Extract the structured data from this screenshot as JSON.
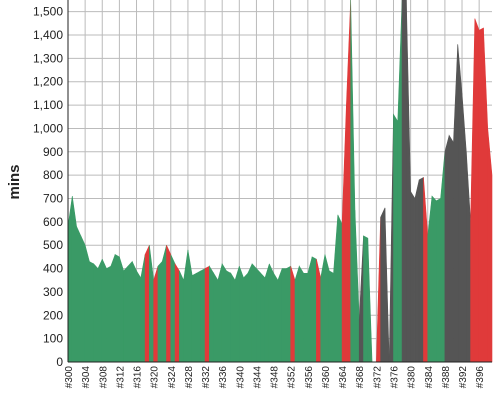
{
  "chart_data": {
    "type": "area",
    "ylabel": "mins",
    "ylim": [
      0,
      1550
    ],
    "yticks": [
      0,
      100,
      200,
      300,
      400,
      500,
      600,
      700,
      800,
      900,
      1000,
      1100,
      1200,
      1300,
      1400,
      1500
    ],
    "ytick_labels": [
      "0",
      "100",
      "200",
      "300",
      "400",
      "500",
      "600",
      "700",
      "800",
      "900",
      "1,000",
      "1,100",
      "1,200",
      "1,300",
      "1,400",
      "1,500"
    ],
    "x": [
      300,
      301,
      302,
      303,
      304,
      305,
      306,
      307,
      308,
      309,
      310,
      311,
      312,
      313,
      314,
      315,
      316,
      317,
      318,
      319,
      320,
      321,
      322,
      323,
      324,
      325,
      326,
      327,
      328,
      329,
      330,
      331,
      332,
      333,
      334,
      335,
      336,
      337,
      338,
      339,
      340,
      341,
      342,
      343,
      344,
      345,
      346,
      347,
      348,
      349,
      350,
      351,
      352,
      353,
      354,
      355,
      356,
      357,
      358,
      359,
      360,
      361,
      362,
      363,
      364,
      365,
      366,
      367,
      368,
      369,
      370,
      371,
      372,
      373,
      374,
      375,
      376,
      377,
      378,
      379,
      380,
      381,
      382,
      383,
      384,
      385,
      386,
      387,
      388,
      389,
      390,
      391,
      392,
      393,
      394,
      395,
      396,
      397,
      398,
      399
    ],
    "values": [
      580,
      710,
      580,
      540,
      500,
      430,
      420,
      400,
      440,
      400,
      410,
      460,
      450,
      390,
      410,
      430,
      390,
      360,
      460,
      500,
      350,
      410,
      430,
      500,
      460,
      420,
      390,
      350,
      480,
      370,
      380,
      390,
      400,
      410,
      380,
      350,
      420,
      390,
      380,
      350,
      410,
      360,
      380,
      420,
      400,
      380,
      360,
      420,
      380,
      350,
      400,
      400,
      410,
      350,
      410,
      380,
      380,
      450,
      440,
      360,
      460,
      390,
      380,
      630,
      590,
      1100,
      1600,
      650,
      180,
      540,
      530,
      0,
      0,
      620,
      660,
      0,
      1060,
      1030,
      1600,
      1600,
      730,
      700,
      780,
      790,
      540,
      710,
      690,
      700,
      900,
      970,
      940,
      1360,
      1150,
      900,
      600,
      1470,
      1420,
      1430,
      1000,
      800
    ],
    "colors": [
      "#3a9a66",
      "#3a9a66",
      "#3a9a66",
      "#3a9a66",
      "#3a9a66",
      "#3a9a66",
      "#3a9a66",
      "#3a9a66",
      "#3a9a66",
      "#3a9a66",
      "#3a9a66",
      "#3a9a66",
      "#3a9a66",
      "#3a9a66",
      "#3a9a66",
      "#3a9a66",
      "#3a9a66",
      "#3a9a66",
      "#e03a3a",
      "#3a9a66",
      "#e03a3a",
      "#3a9a66",
      "#3a9a66",
      "#e03a3a",
      "#3a9a66",
      "#e03a3a",
      "#3a9a66",
      "#3a9a66",
      "#3a9a66",
      "#3a9a66",
      "#3a9a66",
      "#3a9a66",
      "#e03a3a",
      "#3a9a66",
      "#3a9a66",
      "#3a9a66",
      "#3a9a66",
      "#3a9a66",
      "#3a9a66",
      "#3a9a66",
      "#3a9a66",
      "#3a9a66",
      "#3a9a66",
      "#3a9a66",
      "#3a9a66",
      "#3a9a66",
      "#3a9a66",
      "#3a9a66",
      "#3a9a66",
      "#3a9a66",
      "#3a9a66",
      "#3a9a66",
      "#e03a3a",
      "#3a9a66",
      "#3a9a66",
      "#3a9a66",
      "#3a9a66",
      "#3a9a66",
      "#e03a3a",
      "#3a9a66",
      "#3a9a66",
      "#3a9a66",
      "#3a9a66",
      "#3a9a66",
      "#e03a3a",
      "#e03a3a",
      "#3a9a66",
      "#3a9a66",
      "#555555",
      "#3a9a66",
      "#3a9a66",
      "#e03a3a",
      "#e03a3a",
      "#555555",
      "#555555",
      "#555555",
      "#3a9a66",
      "#3a9a66",
      "#555555",
      "#555555",
      "#555555",
      "#555555",
      "#555555",
      "#e03a3a",
      "#3a9a66",
      "#3a9a66",
      "#3a9a66",
      "#3a9a66",
      "#555555",
      "#555555",
      "#555555",
      "#555555",
      "#555555",
      "#555555",
      "#e03a3a",
      "#e03a3a",
      "#e03a3a",
      "#e03a3a",
      "#e03a3a",
      "#e03a3a"
    ],
    "xtick_labels": [
      "#300",
      "#304",
      "#308",
      "#312",
      "#316",
      "#320",
      "#324",
      "#328",
      "#332",
      "#336",
      "#340",
      "#344",
      "#348",
      "#352",
      "#356",
      "#360",
      "#364",
      "#368",
      "#372",
      "#376",
      "#380",
      "#384",
      "#388",
      "#392",
      "#396"
    ],
    "grid": true,
    "background": "#ffffff",
    "grid_color": "#bbbbbb"
  }
}
